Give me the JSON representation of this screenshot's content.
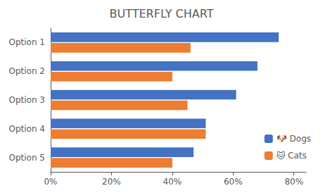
{
  "chart_data": {
    "type": "bar",
    "orientation": "horizontal",
    "title": "BUTTERFLY CHART",
    "categories": [
      "Option 1",
      "Option 2",
      "Option 3",
      "Option 4",
      "Option 5"
    ],
    "series": [
      {
        "name": "🐶 Dogs",
        "color": "#4472C4",
        "values": [
          0.75,
          0.68,
          0.61,
          0.51,
          0.47
        ]
      },
      {
        "name": "🐱 Cats",
        "color": "#ED7D31",
        "values": [
          0.46,
          0.4,
          0.45,
          0.51,
          0.4
        ]
      }
    ],
    "xlim": [
      0,
      0.84
    ],
    "xticks": [
      {
        "value": 0.0,
        "label": "0%"
      },
      {
        "value": 0.2,
        "label": "20%"
      },
      {
        "value": 0.4,
        "label": "40%"
      },
      {
        "value": 0.6,
        "label": "60%"
      },
      {
        "value": 0.8,
        "label": "80%"
      }
    ],
    "grid": false,
    "legend": "lower right"
  }
}
